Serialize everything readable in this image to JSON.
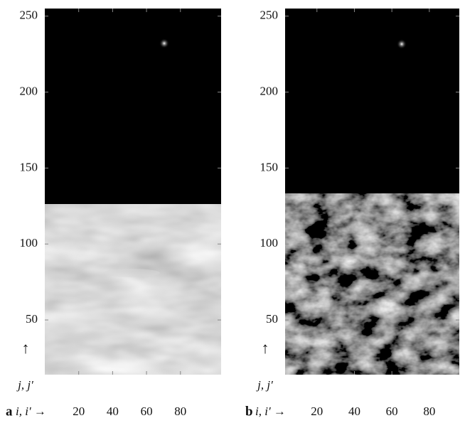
{
  "chart_data": [
    {
      "type": "image",
      "panel_label": "a",
      "x_label": "i, i′ →",
      "y_label_arrow": "↑",
      "y_label": "j, j′",
      "xlim": [
        0,
        104
      ],
      "ylim": [
        14,
        255
      ],
      "xticks": [
        20,
        40,
        60,
        80
      ],
      "yticks": [
        50,
        100,
        150,
        200,
        250
      ]
    },
    {
      "type": "image",
      "panel_label": "b",
      "x_label": "i, i′ →",
      "y_label_arrow": "↑",
      "y_label": "j, j′",
      "xlim": [
        3,
        96
      ],
      "ylim": [
        14,
        255
      ],
      "xticks": [
        20,
        40,
        60,
        80
      ],
      "yticks": [
        50,
        100,
        150,
        200,
        250
      ]
    }
  ]
}
